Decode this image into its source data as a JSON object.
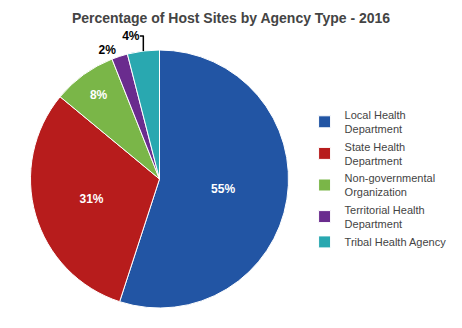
{
  "chart_data": {
    "type": "pie",
    "title": "Percentage of Host Sites by Agency Type - 2016",
    "categories": [
      "Local Health\nDepartment",
      "State Health\nDepartment",
      "Non-governmental\nOrganization",
      "Territorial Health\nDepartment",
      "Tribal Health Agency"
    ],
    "values": [
      55,
      31,
      8,
      2,
      4
    ],
    "value_labels": [
      "55%",
      "31%",
      "8%",
      "2%",
      "4%"
    ],
    "colors": [
      "#2255A4",
      "#B71C1C",
      "#7AB648",
      "#6A2C8E",
      "#29A8B0"
    ],
    "data_labels": true,
    "legend": "right"
  }
}
